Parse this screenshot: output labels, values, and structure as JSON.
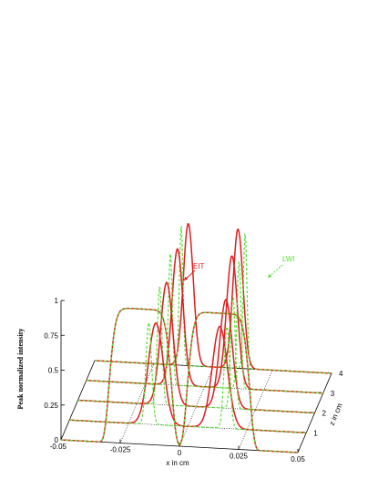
{
  "chart_data": {
    "type": "line",
    "title": "",
    "xlabel": "x in cm",
    "ylabel": "Peak normalized intensity",
    "zlabel": "z in cm",
    "xlim": [
      -0.05,
      0.05
    ],
    "ylim": [
      0,
      1
    ],
    "zlim": [
      0,
      4
    ],
    "x_ticks": [
      "-0.05",
      "-0.025",
      "0",
      "0.025",
      "0.05"
    ],
    "x_tick_values": [
      -0.05,
      -0.025,
      0,
      0.025,
      0.05
    ],
    "y_ticks": [
      "0",
      "0.25",
      "0.5",
      "0.75",
      "1"
    ],
    "y_tick_values": [
      0,
      0.25,
      0.5,
      0.75,
      1
    ],
    "z_ticks": [
      "1",
      "2",
      "3",
      "4"
    ],
    "z_tick_values": [
      1,
      2,
      3,
      4
    ],
    "series": [
      {
        "name": "EIT",
        "color": "#e41a1c",
        "style": "solid",
        "slices": [
          {
            "z": 0,
            "peaks": [
              {
                "x": -0.0165,
                "w": 0.0135,
                "h": 0.97,
                "flat": true
              },
              {
                "x": 0.0165,
                "w": 0.0135,
                "h": 0.97,
                "flat": true
              }
            ]
          },
          {
            "z": 1,
            "peaks": [
              {
                "x": -0.0135,
                "w": 0.0045,
                "h": 0.73
              },
              {
                "x": 0.0135,
                "w": 0.0045,
                "h": 0.73
              }
            ]
          },
          {
            "z": 2,
            "peaks": [
              {
                "x": -0.0125,
                "w": 0.0037,
                "h": 0.88
              },
              {
                "x": 0.0125,
                "w": 0.0037,
                "h": 0.78
              }
            ]
          },
          {
            "z": 3,
            "peaks": [
              {
                "x": -0.0115,
                "w": 0.0033,
                "h": 0.98
              },
              {
                "x": 0.0115,
                "w": 0.0033,
                "h": 0.95
              }
            ]
          },
          {
            "z": 4,
            "peaks": [
              {
                "x": -0.0105,
                "w": 0.003,
                "h": 1.02
              },
              {
                "x": 0.0105,
                "w": 0.003,
                "h": 1.0
              }
            ]
          }
        ]
      },
      {
        "name": "LWI",
        "color": "#55e033",
        "style": "dashed",
        "slices": [
          {
            "z": 0,
            "peaks": [
              {
                "x": -0.0165,
                "w": 0.0135,
                "h": 0.97,
                "flat": true
              },
              {
                "x": 0.0165,
                "w": 0.0135,
                "h": 0.97,
                "flat": true
              }
            ]
          },
          {
            "z": 1,
            "peaks": [
              {
                "x": -0.0165,
                "w": 0.0017,
                "h": 0.73
              },
              {
                "x": 0.0165,
                "w": 0.0017,
                "h": 0.73
              }
            ]
          },
          {
            "z": 2,
            "peaks": [
              {
                "x": -0.0155,
                "w": 0.0014,
                "h": 0.85
              },
              {
                "x": 0.0155,
                "w": 0.0014,
                "h": 0.8
              }
            ]
          },
          {
            "z": 3,
            "peaks": [
              {
                "x": -0.0145,
                "w": 0.0012,
                "h": 0.95
              },
              {
                "x": 0.0145,
                "w": 0.0012,
                "h": 0.92
              }
            ]
          },
          {
            "z": 4,
            "peaks": [
              {
                "x": -0.0135,
                "w": 0.0011,
                "h": 1.0
              },
              {
                "x": 0.0135,
                "w": 0.0011,
                "h": 0.97
              }
            ]
          }
        ]
      }
    ],
    "annotations": [
      {
        "text": "EIT",
        "series": "EIT"
      },
      {
        "text": "LWI",
        "series": "LWI"
      }
    ],
    "grid": true
  }
}
